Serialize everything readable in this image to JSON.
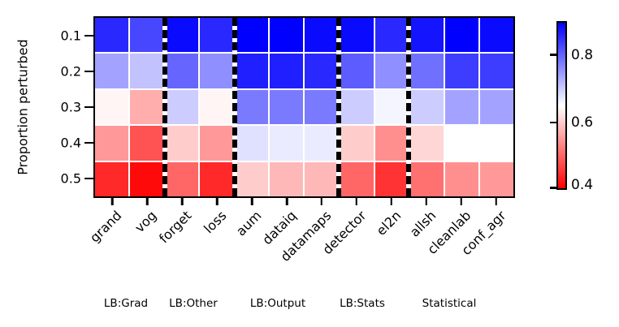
{
  "chart_data": {
    "type": "heatmap",
    "title": "",
    "xlabel": "",
    "ylabel": "Proportion perturbed",
    "rows": [
      "0.1",
      "0.2",
      "0.3",
      "0.4",
      "0.5"
    ],
    "columns": [
      "grand",
      "vog",
      "forget",
      "loss",
      "aum",
      "dataiq",
      "datamaps",
      "detector",
      "el2n",
      "allsh",
      "cleanlab",
      "conf_agr"
    ],
    "groups": [
      {
        "label": "LB:Grad",
        "columns": [
          "grand",
          "vog"
        ],
        "span": 2
      },
      {
        "label": "LB:Other",
        "columns": [
          "forget",
          "loss"
        ],
        "span": 2
      },
      {
        "label": "LB:Output",
        "columns": [
          "aum",
          "dataiq",
          "datamaps"
        ],
        "span": 3
      },
      {
        "label": "LB:Stats",
        "columns": [
          "detector",
          "el2n"
        ],
        "span": 2
      },
      {
        "label": "Statistical",
        "columns": [
          "allsh",
          "cleanlab",
          "conf_agr"
        ],
        "span": 3
      }
    ],
    "values": [
      [
        0.86,
        0.83,
        0.89,
        0.86,
        0.9,
        0.9,
        0.89,
        0.89,
        0.86,
        0.88,
        0.9,
        0.89
      ],
      [
        0.74,
        0.71,
        0.8,
        0.76,
        0.87,
        0.87,
        0.86,
        0.81,
        0.76,
        0.79,
        0.84,
        0.84
      ],
      [
        0.64,
        0.57,
        0.7,
        0.64,
        0.78,
        0.78,
        0.78,
        0.7,
        0.66,
        0.7,
        0.74,
        0.74
      ],
      [
        0.55,
        0.48,
        0.6,
        0.55,
        0.68,
        0.67,
        0.67,
        0.6,
        0.54,
        0.61,
        0.65,
        0.65
      ],
      [
        0.44,
        0.41,
        0.5,
        0.44,
        0.6,
        0.58,
        0.58,
        0.5,
        0.45,
        0.51,
        0.54,
        0.55
      ]
    ],
    "colormap": {
      "name": "bwr_r",
      "vmin": 0.4,
      "vmax": 0.9,
      "low_color": "#ff0000",
      "mid_color": "#ffffff",
      "high_color": "#0000ff"
    },
    "colorbar": {
      "tick_labels": [
        "0.8",
        "0.6",
        "0.4"
      ],
      "tick_values": [
        0.8,
        0.6,
        0.4
      ]
    },
    "grid": true,
    "gridline_color": "#ffffff",
    "separator_style": "dashed-black"
  }
}
